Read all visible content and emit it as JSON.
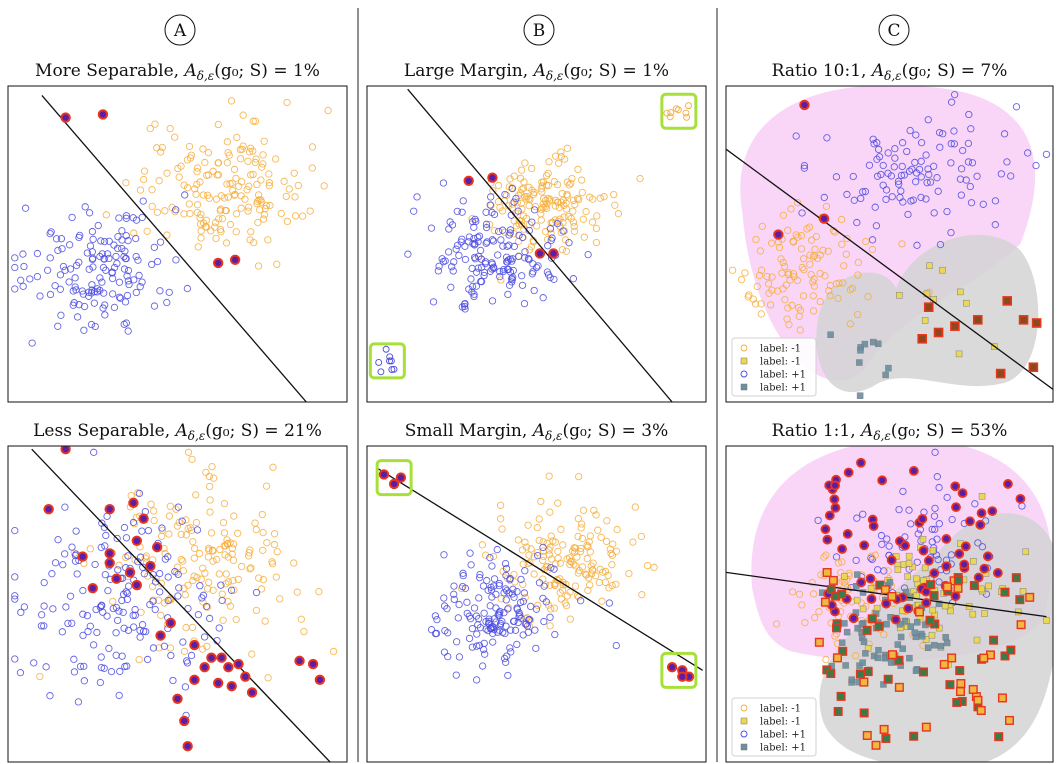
{
  "columns": [
    "A",
    "B",
    "C"
  ],
  "legend_labels": [
    "label: -1",
    "label: -1",
    "label: +1",
    "label: +1"
  ],
  "colors": {
    "orange": "#f6ad3a",
    "blue": "#4a4ae0",
    "highlight_face": "#5b1ea8",
    "highlight_edge": "#e8351d",
    "lime": "#a8e03a",
    "yellow_square": "#ecd84a",
    "teal_square": "#6a8fa0",
    "pink_region": "#f7c8f4",
    "gray_region": "#d4d4d4"
  },
  "chart_data": [
    {
      "id": "A-top",
      "type": "scatter",
      "title": "More Separable, A_{δ,ε}(g₀; S) = 1%",
      "xlim": [
        0,
        1
      ],
      "ylim": [
        0,
        1
      ],
      "classes": [
        {
          "marker": "circle",
          "color": "orange",
          "n": 170,
          "cx": 0.62,
          "cy": 0.68,
          "sx": 0.12,
          "sy": 0.1
        },
        {
          "marker": "circle",
          "color": "blue",
          "n": 150,
          "cx": 0.28,
          "cy": 0.42,
          "sx": 0.12,
          "sy": 0.1
        }
      ],
      "boundary": [
        [
          0.1,
          0.97
        ],
        [
          0.88,
          0.0
        ]
      ],
      "highlights": [
        [
          0.17,
          0.9
        ],
        [
          0.28,
          0.91
        ],
        [
          0.62,
          0.44
        ],
        [
          0.67,
          0.45
        ]
      ],
      "highlight_boxes": []
    },
    {
      "id": "A-bottom",
      "type": "scatter",
      "title": "Less Separable, A_{δ,ε}(g₀; S) = 21%",
      "xlim": [
        0,
        1
      ],
      "ylim": [
        0,
        1
      ],
      "classes": [
        {
          "marker": "circle",
          "color": "orange",
          "n": 170,
          "cx": 0.55,
          "cy": 0.62,
          "sx": 0.14,
          "sy": 0.13
        },
        {
          "marker": "circle",
          "color": "blue",
          "n": 170,
          "cx": 0.32,
          "cy": 0.5,
          "sx": 0.15,
          "sy": 0.14
        }
      ],
      "boundary": [
        [
          0.07,
          0.99
        ],
        [
          0.95,
          0.0
        ]
      ],
      "highlights": [
        [
          0.17,
          0.99
        ],
        [
          0.12,
          0.8
        ],
        [
          0.3,
          0.8
        ],
        [
          0.37,
          0.82
        ],
        [
          0.4,
          0.77
        ],
        [
          0.22,
          0.65
        ],
        [
          0.3,
          0.66
        ],
        [
          0.38,
          0.7
        ],
        [
          0.44,
          0.68
        ],
        [
          0.3,
          0.63
        ],
        [
          0.36,
          0.6
        ],
        [
          0.25,
          0.55
        ],
        [
          0.32,
          0.58
        ],
        [
          0.38,
          0.56
        ],
        [
          0.42,
          0.62
        ],
        [
          0.55,
          0.37
        ],
        [
          0.6,
          0.33
        ],
        [
          0.63,
          0.33
        ],
        [
          0.65,
          0.3
        ],
        [
          0.68,
          0.31
        ],
        [
          0.7,
          0.27
        ],
        [
          0.55,
          0.26
        ],
        [
          0.66,
          0.24
        ],
        [
          0.72,
          0.22
        ],
        [
          0.86,
          0.32
        ],
        [
          0.9,
          0.31
        ],
        [
          0.92,
          0.26
        ],
        [
          0.5,
          0.2
        ],
        [
          0.52,
          0.13
        ],
        [
          0.53,
          0.05
        ],
        [
          0.58,
          0.3
        ],
        [
          0.62,
          0.25
        ],
        [
          0.45,
          0.4
        ],
        [
          0.48,
          0.44
        ]
      ],
      "highlight_boxes": []
    },
    {
      "id": "B-top",
      "type": "scatter",
      "title": "Large Margin, A_{δ,ε}(g₀; S) = 1%",
      "xlim": [
        0,
        1
      ],
      "ylim": [
        0,
        1
      ],
      "classes": [
        {
          "marker": "circle",
          "color": "orange",
          "n": 160,
          "cx": 0.53,
          "cy": 0.63,
          "sx": 0.09,
          "sy": 0.07
        },
        {
          "marker": "circle",
          "color": "blue",
          "n": 160,
          "cx": 0.37,
          "cy": 0.47,
          "sx": 0.09,
          "sy": 0.08
        }
      ],
      "clusters": [
        {
          "color": "orange",
          "n": 8,
          "cx": 0.92,
          "cy": 0.92,
          "r": 0.03
        },
        {
          "color": "blue",
          "n": 8,
          "cx": 0.06,
          "cy": 0.13,
          "r": 0.03
        }
      ],
      "boundary": [
        [
          0.12,
          0.99
        ],
        [
          0.9,
          0.0
        ]
      ],
      "highlights": [
        [
          0.3,
          0.7
        ],
        [
          0.37,
          0.71
        ],
        [
          0.51,
          0.47
        ],
        [
          0.55,
          0.47
        ]
      ],
      "highlight_boxes": [
        [
          0.92,
          0.92
        ],
        [
          0.06,
          0.13
        ]
      ]
    },
    {
      "id": "B-bottom",
      "type": "scatter",
      "title": "Small Margin, A_{δ,ε}(g₀; S) = 3%",
      "xlim": [
        0,
        1
      ],
      "ylim": [
        0,
        1
      ],
      "classes": [
        {
          "marker": "circle",
          "color": "orange",
          "n": 160,
          "cx": 0.58,
          "cy": 0.64,
          "sx": 0.11,
          "sy": 0.09
        },
        {
          "marker": "circle",
          "color": "blue",
          "n": 160,
          "cx": 0.38,
          "cy": 0.47,
          "sx": 0.1,
          "sy": 0.09
        }
      ],
      "clusters": [],
      "boundary": [
        [
          0.03,
          0.93
        ],
        [
          0.99,
          0.29
        ]
      ],
      "highlights": [
        [
          0.05,
          0.91
        ],
        [
          0.1,
          0.9
        ],
        [
          0.08,
          0.88
        ],
        [
          0.9,
          0.3
        ],
        [
          0.93,
          0.29
        ],
        [
          0.95,
          0.27
        ],
        [
          0.93,
          0.27
        ]
      ],
      "highlight_boxes": [
        [
          0.08,
          0.9
        ],
        [
          0.92,
          0.29
        ]
      ]
    },
    {
      "id": "C-top",
      "type": "scatter",
      "title": "Ratio 10:1, A_{δ,ε}(g₀; S) = 7%",
      "xlim": [
        0,
        1
      ],
      "ylim": [
        0,
        1
      ],
      "classes": [
        {
          "marker": "circle",
          "color": "blue",
          "n": 110,
          "cx": 0.57,
          "cy": 0.72,
          "sx": 0.15,
          "sy": 0.1
        },
        {
          "marker": "circle",
          "color": "orange",
          "n": 110,
          "cx": 0.23,
          "cy": 0.4,
          "sx": 0.1,
          "sy": 0.1
        },
        {
          "marker": "square",
          "color": "yellow_square",
          "n": 10,
          "cx": 0.72,
          "cy": 0.27,
          "sx": 0.1,
          "sy": 0.08
        },
        {
          "marker": "square",
          "color": "teal_square",
          "n": 10,
          "cx": 0.42,
          "cy": 0.15,
          "sx": 0.08,
          "sy": 0.08
        }
      ],
      "boundary": [
        [
          0.0,
          0.8
        ],
        [
          1.0,
          0.04
        ]
      ],
      "highlights": [
        [
          0.24,
          0.94
        ],
        [
          0.16,
          0.53
        ],
        [
          0.3,
          0.58
        ]
      ],
      "square_highlights": [
        [
          0.62,
          0.3
        ],
        [
          0.7,
          0.24
        ],
        [
          0.77,
          0.26
        ],
        [
          0.86,
          0.32
        ],
        [
          0.91,
          0.26
        ],
        [
          0.95,
          0.25
        ],
        [
          0.6,
          0.2
        ],
        [
          0.84,
          0.09
        ],
        [
          0.94,
          0.11
        ],
        [
          0.65,
          0.22
        ]
      ],
      "highlight_boxes": [],
      "legend": true
    },
    {
      "id": "C-bottom",
      "type": "scatter",
      "title": "Ratio 1:1, A_{δ,ε}(g₀; S) = 53%",
      "xlim": [
        0,
        1
      ],
      "ylim": [
        0,
        1
      ],
      "classes": [
        {
          "marker": "circle",
          "color": "blue",
          "n": 70,
          "cx": 0.6,
          "cy": 0.72,
          "sx": 0.14,
          "sy": 0.1
        },
        {
          "marker": "circle",
          "color": "orange",
          "n": 70,
          "cx": 0.38,
          "cy": 0.5,
          "sx": 0.1,
          "sy": 0.08
        },
        {
          "marker": "square",
          "color": "yellow_square",
          "n": 70,
          "cx": 0.63,
          "cy": 0.52,
          "sx": 0.12,
          "sy": 0.08
        },
        {
          "marker": "square",
          "color": "teal_square",
          "n": 70,
          "cx": 0.5,
          "cy": 0.38,
          "sx": 0.1,
          "sy": 0.08
        }
      ],
      "boundary": [
        [
          0.0,
          0.6
        ],
        [
          0.98,
          0.46
        ]
      ],
      "dense_highlights": {
        "circles": 65,
        "squares": 75
      },
      "highlight_boxes": [],
      "legend": true
    }
  ]
}
